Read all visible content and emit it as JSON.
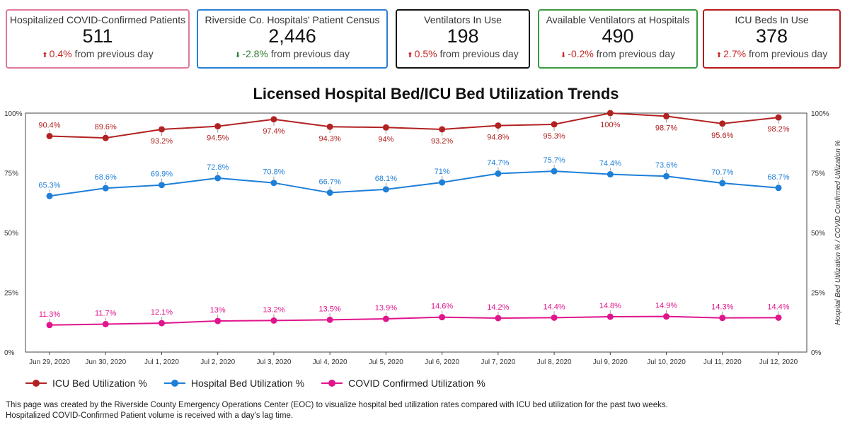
{
  "cards": [
    {
      "title": "Hospitalized COVID-Confirmed Patients",
      "value": "511",
      "delta": "0.4%",
      "delta_direction": "up",
      "delta_color": "#c62828",
      "suffix": "from previous day",
      "border_color": "#e07a9a"
    },
    {
      "title": "Riverside Co. Hospitals' Patient Census",
      "value": "2,446",
      "delta": "-2.8%",
      "delta_direction": "down",
      "delta_color": "#2e7d32",
      "suffix": "from previous day",
      "border_color": "#2a7fd4"
    },
    {
      "title": "Ventilators In Use",
      "value": "198",
      "delta": "0.5%",
      "delta_direction": "up",
      "delta_color": "#c62828",
      "suffix": "from previous day",
      "border_color": "#111111"
    },
    {
      "title": "Available Ventilators at Hospitals",
      "value": "490",
      "delta": "-0.2%",
      "delta_direction": "down",
      "delta_color": "#c62828",
      "suffix": "from previous day",
      "border_color": "#3a9a3f"
    },
    {
      "title": "ICU Beds In Use",
      "value": "378",
      "delta": "2.7%",
      "delta_direction": "up",
      "delta_color": "#c62828",
      "suffix": "from previous day",
      "border_color": "#b71c1c"
    }
  ],
  "chart_data": {
    "type": "line",
    "title": "Licensed Hospital Bed/ICU Bed Utilization Trends",
    "xlabel": "",
    "ylabel": "",
    "y2label": "Hospital Bed Utilization % / COVID Confirmed Utilization %",
    "ylim": [
      0,
      100
    ],
    "yticks": [
      "0%",
      "25%",
      "50%",
      "75%",
      "100%"
    ],
    "ytick_values": [
      0,
      25,
      50,
      75,
      100
    ],
    "grid": false,
    "legend_position": "bottom-left",
    "categories": [
      "Jun 29, 2020",
      "Jun 30, 2020",
      "Jul 1, 2020",
      "Jul 2, 2020",
      "Jul 3, 2020",
      "Jul 4, 2020",
      "Jul 5, 2020",
      "Jul 6, 2020",
      "Jul 7, 2020",
      "Jul 8, 2020",
      "Jul 9, 2020",
      "Jul 10, 2020",
      "Jul 11, 2020",
      "Jul 12, 2020"
    ],
    "series": [
      {
        "name": "ICU Bed Utilization %",
        "color": "#b22222",
        "values": [
          90.4,
          89.6,
          93.2,
          94.5,
          97.4,
          94.3,
          94,
          93.2,
          94.8,
          95.3,
          100,
          98.7,
          95.6,
          98.2
        ],
        "labels": [
          "90.4%",
          "89.6%",
          "93.2%",
          "94.5%",
          "97.4%",
          "94.3%",
          "94%",
          "93.2%",
          "94.8%",
          "95.3%",
          "100%",
          "98.7%",
          "95.6%",
          "98.2%"
        ],
        "label_pos": [
          "above",
          "above",
          "below",
          "below",
          "below",
          "below",
          "below",
          "below",
          "below",
          "below",
          "below",
          "below",
          "below",
          "below"
        ]
      },
      {
        "name": "Hospital Bed Utilization %",
        "color": "#1e7fd8",
        "values": [
          65.3,
          68.6,
          69.9,
          72.8,
          70.8,
          66.7,
          68.1,
          71,
          74.7,
          75.7,
          74.4,
          73.6,
          70.7,
          68.7
        ],
        "labels": [
          "65.3%",
          "68.6%",
          "69.9%",
          "72.8%",
          "70.8%",
          "66.7%",
          "68.1%",
          "71%",
          "74.7%",
          "75.7%",
          "74.4%",
          "73.6%",
          "70.7%",
          "68.7%"
        ],
        "label_pos": [
          "above",
          "above",
          "above",
          "above",
          "above",
          "above",
          "above",
          "above",
          "above",
          "above",
          "above",
          "above",
          "above",
          "above"
        ]
      },
      {
        "name": "COVID Confirmed Utilization %",
        "color": "#e0148c",
        "values": [
          11.3,
          11.7,
          12.1,
          13,
          13.2,
          13.5,
          13.9,
          14.6,
          14.2,
          14.4,
          14.8,
          14.9,
          14.3,
          14.4
        ],
        "labels": [
          "11.3%",
          "11.7%",
          "12.1%",
          "13%",
          "13.2%",
          "13.5%",
          "13.9%",
          "14.6%",
          "14.2%",
          "14.4%",
          "14.8%",
          "14.9%",
          "14.3%",
          "14.4%"
        ],
        "label_pos": [
          "above",
          "above",
          "above",
          "above",
          "above",
          "above",
          "above",
          "above",
          "above",
          "above",
          "above",
          "above",
          "above",
          "above"
        ]
      }
    ]
  },
  "legend": [
    {
      "label": "ICU Bed Utilization %",
      "color": "#b22222"
    },
    {
      "label": "Hospital Bed Utilization %",
      "color": "#1e7fd8"
    },
    {
      "label": "COVID Confirmed Utilization %",
      "color": "#e0148c"
    }
  ],
  "footer": {
    "line1": "This page was created by the Riverside County Emergency Operations Center (EOC) to visualize hospital bed utilization rates compared with ICU bed utilization for the past two weeks.",
    "line2": "Hospitalized COVID-Confirmed Patient volume is received with a day's lag time."
  }
}
